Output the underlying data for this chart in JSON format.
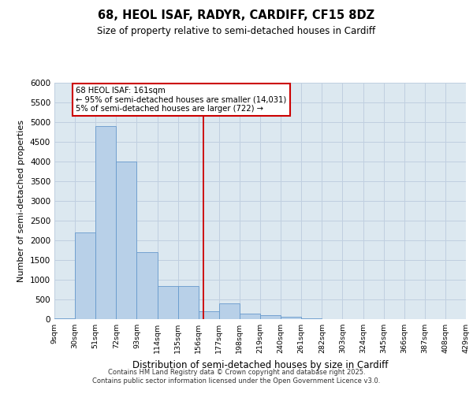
{
  "title": "68, HEOL ISAF, RADYR, CARDIFF, CF15 8DZ",
  "subtitle": "Size of property relative to semi-detached houses in Cardiff",
  "xlabel": "Distribution of semi-detached houses by size in Cardiff",
  "ylabel": "Number of semi-detached properties",
  "bin_edges": [
    9,
    30,
    51,
    72,
    93,
    114,
    135,
    156,
    177,
    198,
    219,
    240,
    261,
    282,
    303,
    324,
    345,
    366,
    387,
    408,
    429
  ],
  "bin_labels": [
    "9sqm",
    "30sqm",
    "51sqm",
    "72sqm",
    "93sqm",
    "114sqm",
    "135sqm",
    "156sqm",
    "177sqm",
    "198sqm",
    "219sqm",
    "240sqm",
    "261sqm",
    "282sqm",
    "303sqm",
    "324sqm",
    "345sqm",
    "366sqm",
    "387sqm",
    "408sqm",
    "429sqm"
  ],
  "bar_heights": [
    30,
    2200,
    4900,
    4000,
    1700,
    850,
    850,
    200,
    400,
    150,
    100,
    60,
    30,
    0,
    0,
    0,
    0,
    0,
    0,
    0
  ],
  "bar_color": "#b8d0e8",
  "bar_edge_color": "#6699cc",
  "grid_color": "#c0cfe0",
  "background_color": "#dce8f0",
  "red_line_x": 161,
  "annotation_title": "68 HEOL ISAF: 161sqm",
  "annotation_line1": "← 95% of semi-detached houses are smaller (14,031)",
  "annotation_line2": "5% of semi-detached houses are larger (722) →",
  "annotation_box_color": "#ffffff",
  "annotation_border_color": "#cc0000",
  "red_line_color": "#cc0000",
  "ylim": [
    0,
    6000
  ],
  "yticks": [
    0,
    500,
    1000,
    1500,
    2000,
    2500,
    3000,
    3500,
    4000,
    4500,
    5000,
    5500,
    6000
  ],
  "footer_line1": "Contains HM Land Registry data © Crown copyright and database right 2025.",
  "footer_line2": "Contains public sector information licensed under the Open Government Licence v3.0."
}
